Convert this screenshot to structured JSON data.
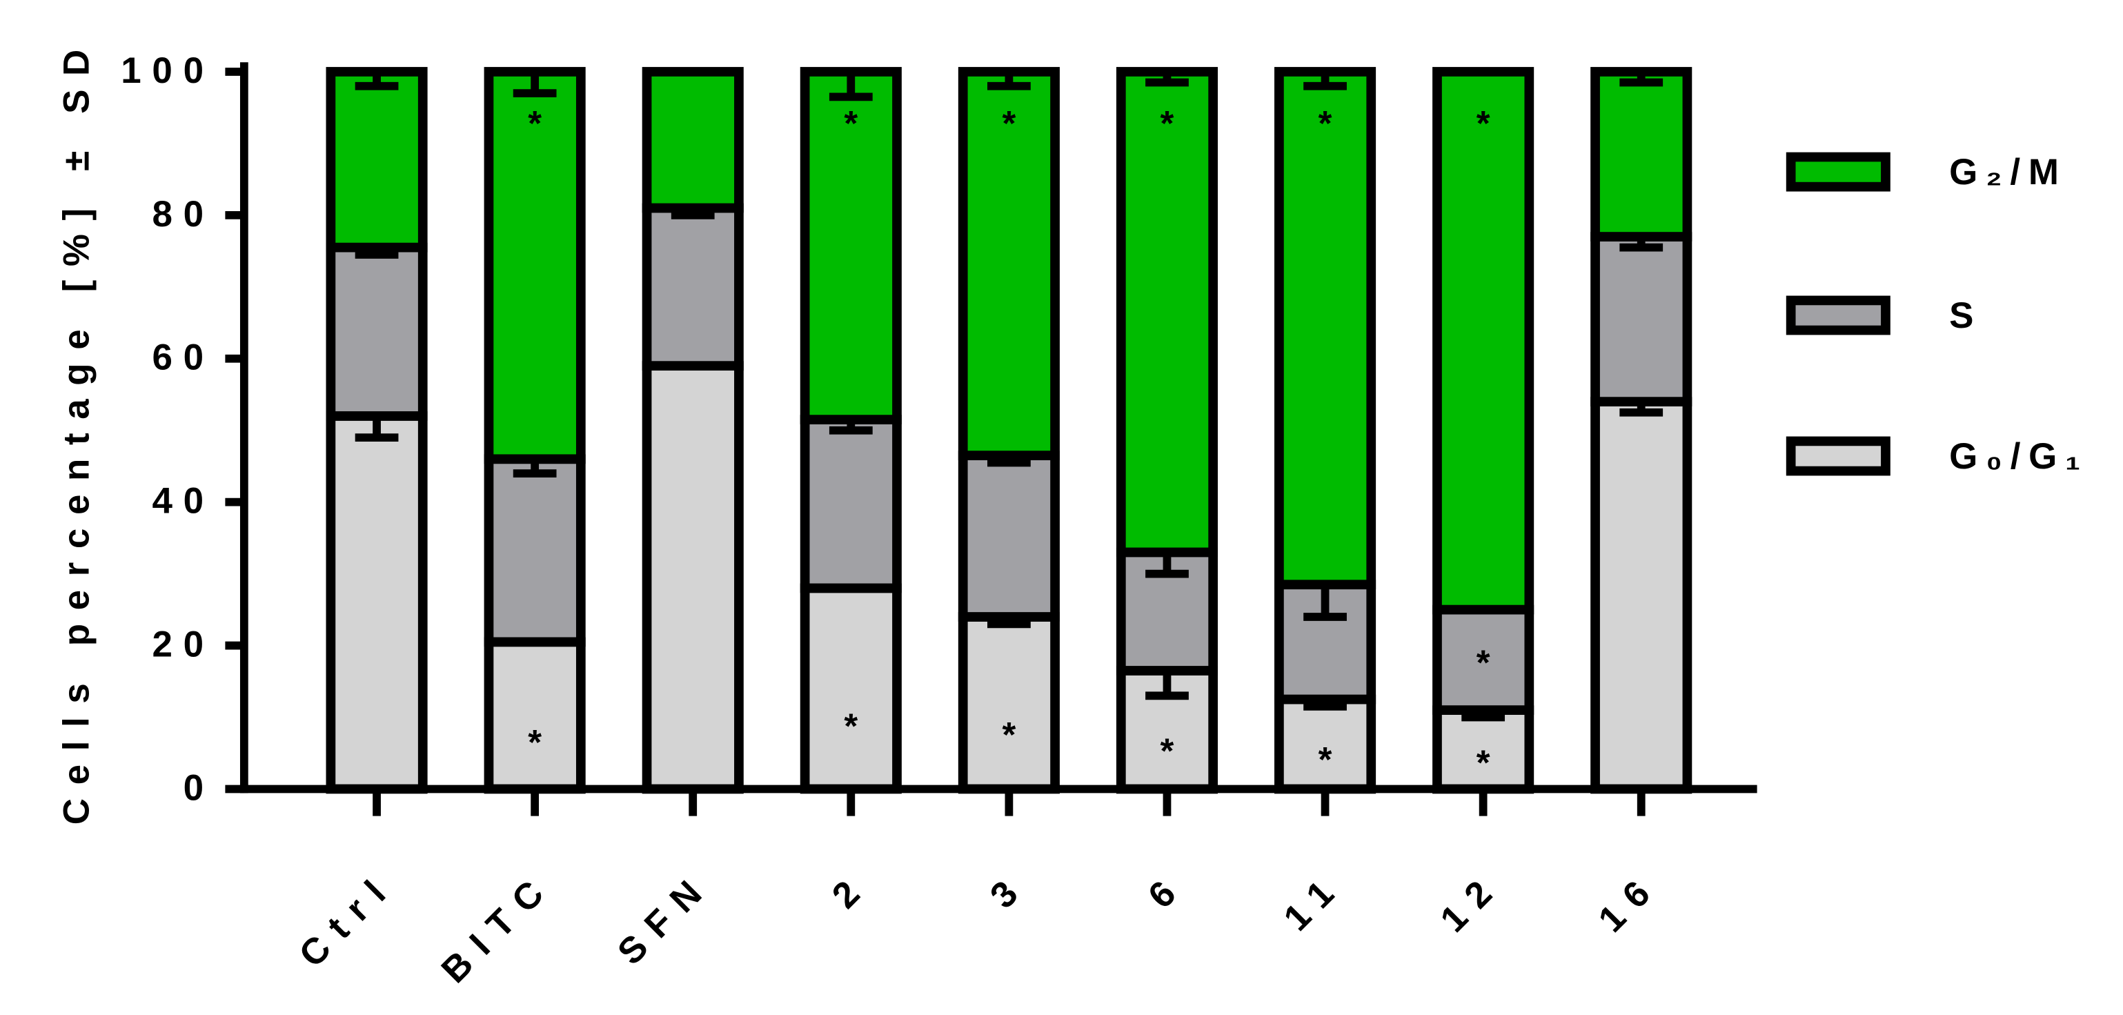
{
  "chart_data": {
    "type": "stacked-bar",
    "y_label": "Cells percentage [%] ± SD",
    "categories": [
      "Ctrl",
      "BITC",
      "SFN",
      "2",
      "3",
      "6",
      "11",
      "12",
      "16"
    ],
    "ylim": [
      0,
      100
    ],
    "yticks": [
      0,
      20,
      40,
      60,
      80,
      100
    ],
    "series": [
      {
        "name": "G₀/G₁",
        "color": "#d4d4d4",
        "values": [
          52,
          20.5,
          59,
          28,
          24,
          16.5,
          12.5,
          11,
          54
        ],
        "errors": [
          3,
          0,
          0,
          0,
          1,
          3.5,
          1,
          1,
          1.5
        ],
        "significance": [
          null,
          "*",
          null,
          "*",
          "*",
          "*",
          "*",
          "*",
          null
        ]
      },
      {
        "name": "S",
        "color": "#a1a1a5",
        "values": [
          23.5,
          25.5,
          22,
          23.5,
          22.5,
          16.5,
          16,
          14,
          23
        ],
        "errors": [
          1,
          2,
          1,
          1.5,
          1,
          3,
          4.5,
          0,
          1.5
        ],
        "significance": [
          null,
          null,
          null,
          null,
          null,
          null,
          null,
          "*",
          null
        ]
      },
      {
        "name": "G₂/M",
        "color": "#00bb00",
        "values": [
          24.5,
          54,
          19,
          48.5,
          53.5,
          67,
          71.5,
          75,
          23
        ],
        "errors": [
          2,
          3,
          0,
          3.5,
          2,
          1.5,
          2,
          0,
          1.5
        ],
        "significance": [
          null,
          "*",
          null,
          "*",
          "*",
          "*",
          "*",
          "*",
          null
        ]
      }
    ],
    "legend_position": "right"
  }
}
